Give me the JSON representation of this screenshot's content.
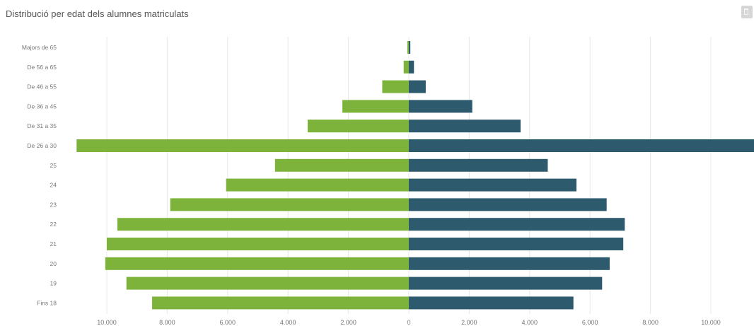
{
  "title": "Distribució per edat dels alumnes matriculats",
  "export_icon": "export-icon",
  "colors": {
    "left": "#7db33a",
    "right": "#2e5a6e",
    "grid": "#e8e8e8",
    "text": "#777777"
  },
  "chart_data": {
    "type": "bar",
    "orientation": "horizontal-diverging",
    "title": "Distribució per edat dels alumnes matriculats",
    "categories": [
      "Majors de 65",
      "De 56 a 65",
      "De 46 a 55",
      "De 36 a 45",
      "De 31 a 35",
      "De 26 a 30",
      "25",
      "24",
      "23",
      "22",
      "21",
      "20",
      "19",
      "Fins 18"
    ],
    "series": [
      {
        "values": [
          -50,
          -170,
          -880,
          -2200,
          -3350,
          -11000,
          -4430,
          -6050,
          -7900,
          -9650,
          -10000,
          -10050,
          -9350,
          -8500
        ]
      },
      {
        "values": [
          50,
          170,
          560,
          2100,
          3700,
          11500,
          4600,
          5550,
          6550,
          7150,
          7100,
          6650,
          6400,
          5450
        ]
      }
    ],
    "xlim": [
      -11000,
      11500
    ],
    "xticks": [
      -10000,
      -8000,
      -6000,
      -4000,
      -2000,
      0,
      2000,
      4000,
      6000,
      8000,
      10000
    ],
    "xtick_labels": [
      "10.000",
      "8.000",
      "6.000",
      "4.000",
      "2.000",
      "0",
      "2.000",
      "4.000",
      "6.000",
      "8.000",
      "10.000"
    ],
    "grid": true,
    "legend": "none"
  }
}
